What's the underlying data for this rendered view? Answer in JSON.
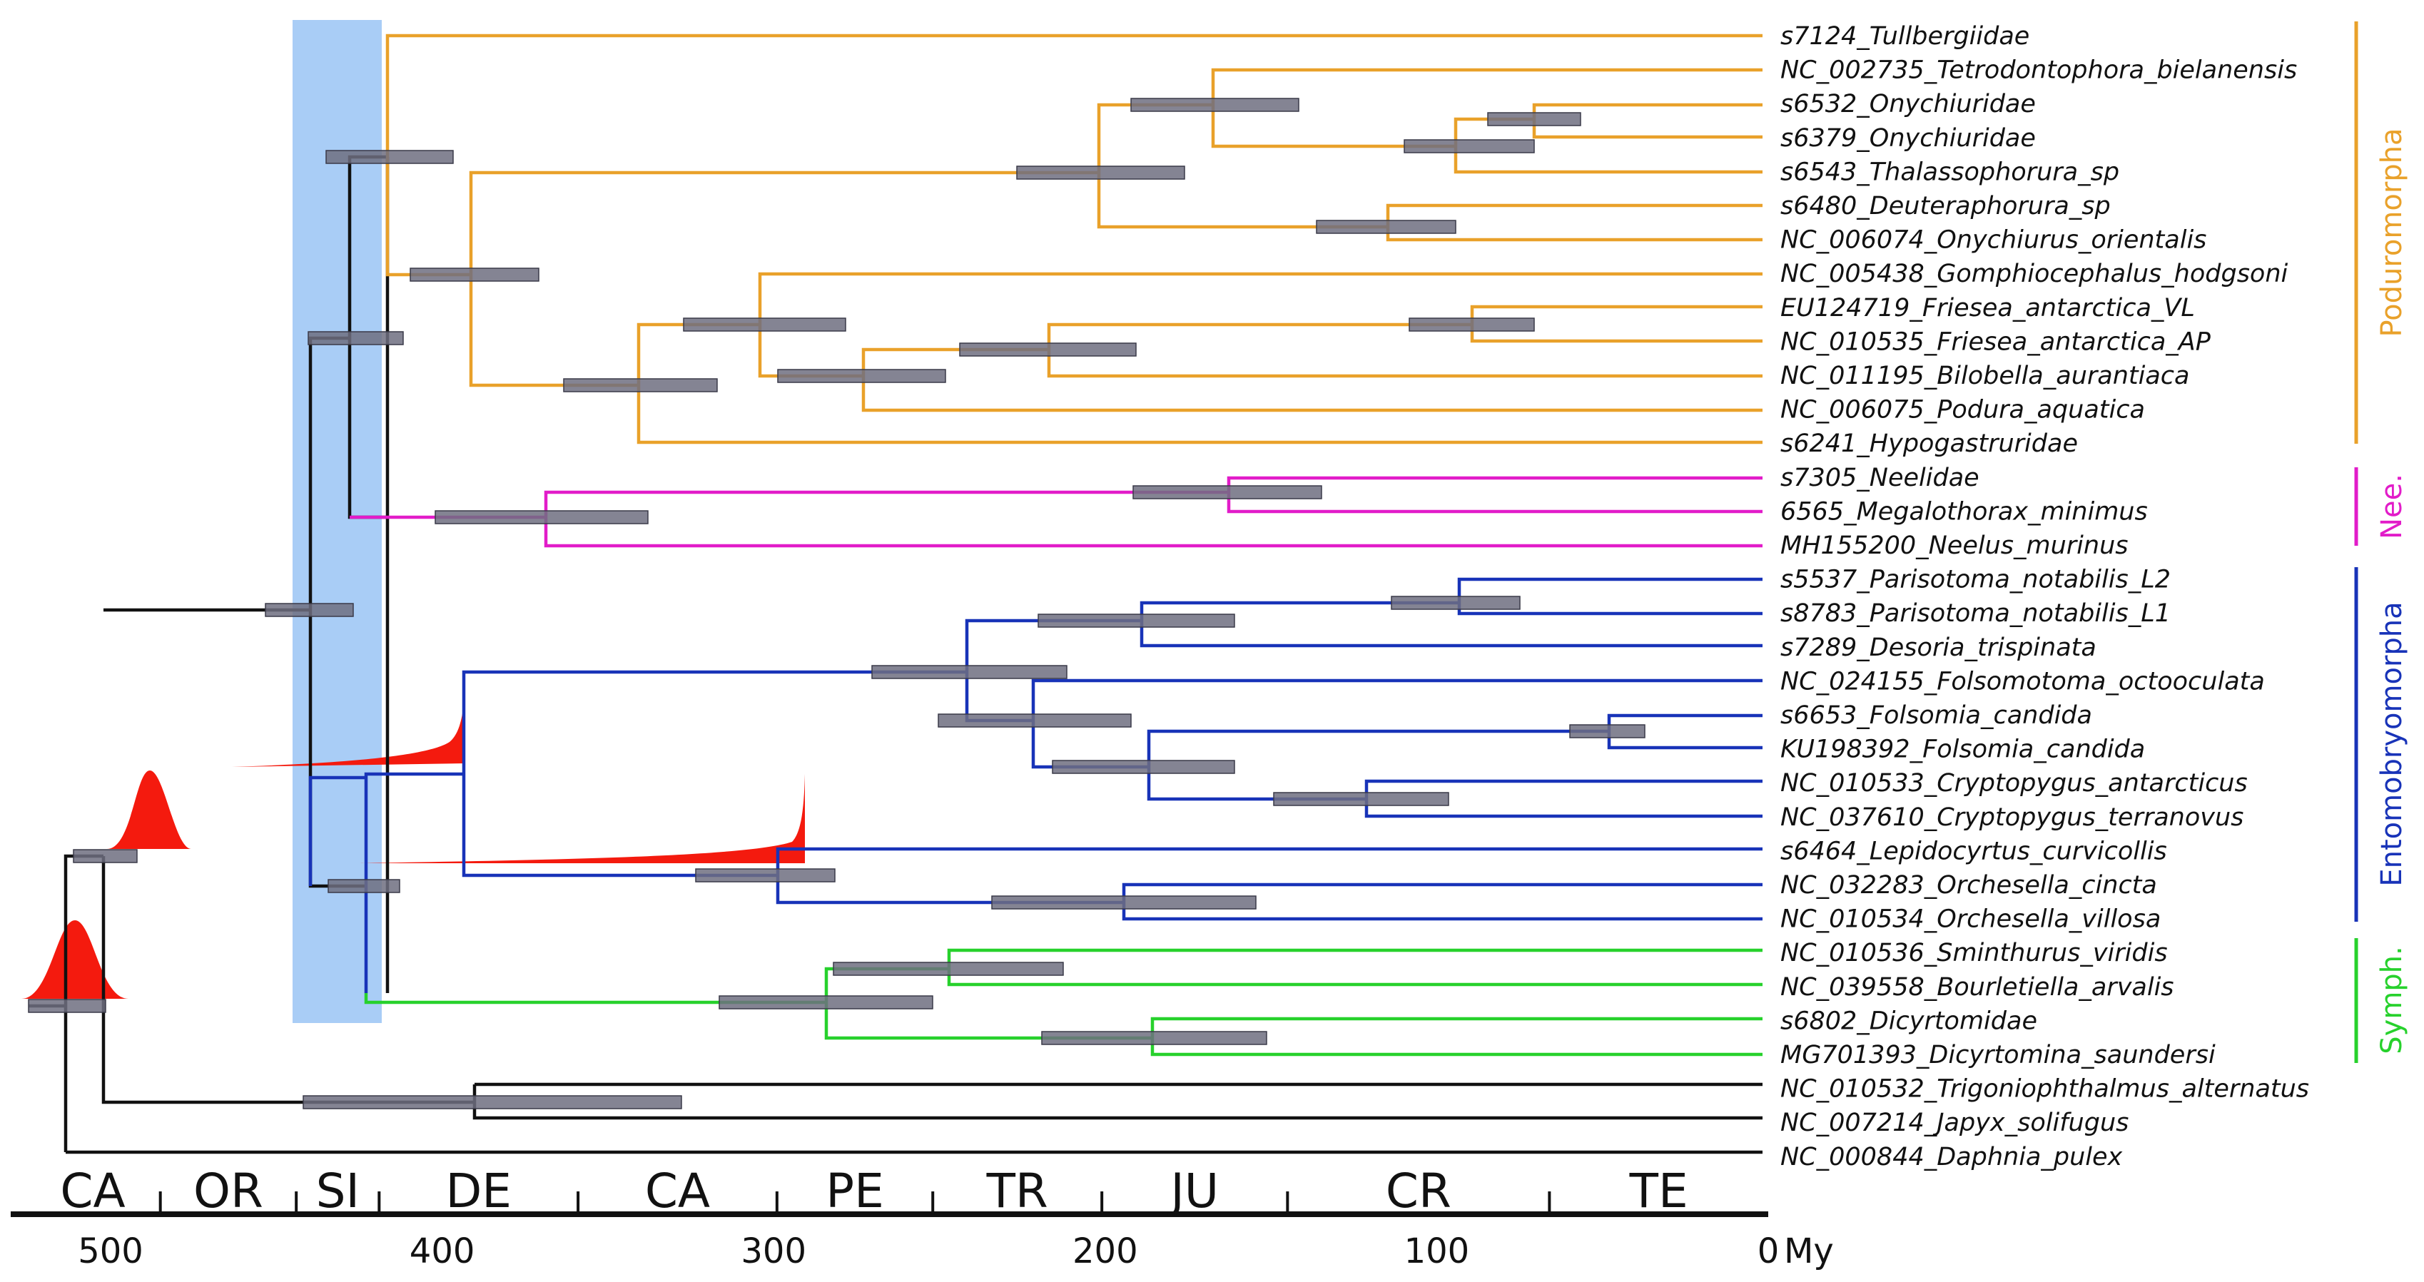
{
  "colors": {
    "podur": "#E9A12A",
    "nee": "#E21CC9",
    "ento": "#1833B8",
    "symph": "#27D12C",
    "outgroup": "#111111",
    "highlight": "#A9CDF6",
    "hpd_bar": "#6E6E80",
    "prior": "#F41A0E"
  },
  "axis": {
    "unit_label": "My",
    "ticks": [
      "500",
      "400",
      "300",
      "200",
      "100",
      "0"
    ]
  },
  "periods": [
    "CA",
    "OR",
    "SI",
    "DE",
    "CA",
    "PE",
    "TR",
    "JU",
    "CR",
    "TE"
  ],
  "taxa": [
    "s7124_Tullbergiidae",
    "NC_002735_Tetrodontophora_bielanensis",
    "s6532_Onychiuridae",
    "s6379_Onychiuridae",
    "s6543_Thalassophorura_sp",
    "s6480_Deuteraphorura_sp",
    "NC_006074_Onychiurus_orientalis",
    "NC_005438_Gomphiocephalus_hodgsoni",
    "EU124719_Friesea_antarctica_VL",
    "NC_010535_Friesea_antarctica_AP",
    "NC_011195_Bilobella_aurantiaca",
    "NC_006075_Podura_aquatica",
    "s6241_Hypogastruridae",
    "s7305_Neelidae",
    "6565_Megalothorax_minimus",
    "MH155200_Neelus_murinus",
    "s5537_Parisotoma_notabilis_L2",
    "s8783_Parisotoma_notabilis_L1",
    "s7289_Desoria_trispinata",
    "NC_024155_Folsomotoma_octooculata",
    "s6653_Folsomia_candida",
    "KU198392_Folsomia_candida",
    "NC_010533_Cryptopygus_antarcticus",
    "NC_037610_Cryptopygus_terranovus",
    "s6464_Lepidocyrtus_curvicollis",
    "NC_032283_Orchesella_cincta",
    "NC_010534_Orchesella_villosa",
    "NC_010536_Sminthurus_viridis",
    "NC_039558_Bourletiella_arvalis",
    "s6802_Dicyrtomidae",
    "MG701393_Dicyrtomina_saundersi",
    "NC_010532_Trigoniophthalmus_alternatus",
    "NC_007214_Japyx_solifugus",
    "NC_000844_Daphnia_pulex"
  ],
  "clades": [
    {
      "label": "Poduromorpha",
      "color": "podur"
    },
    {
      "label": "Nee.",
      "color": "nee"
    },
    {
      "label": "Entomobryomorpha",
      "color": "ento"
    },
    {
      "label": "Symph.",
      "color": "symph"
    }
  ]
}
